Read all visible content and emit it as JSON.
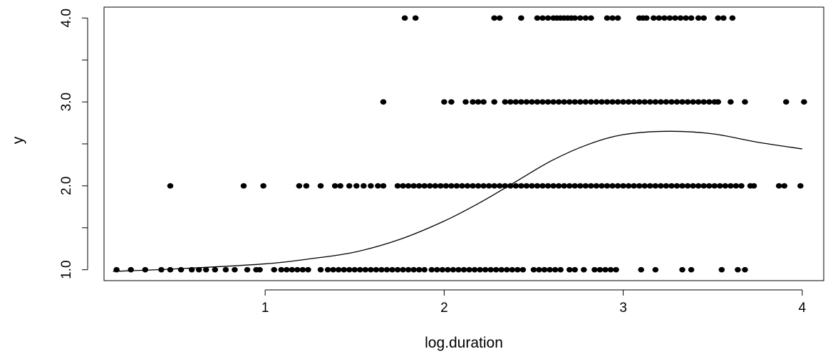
{
  "chart_data": {
    "type": "scatter",
    "xlabel": "log.duration",
    "ylabel": "y",
    "xlim": [
      0.1,
      4.12
    ],
    "ylim": [
      0.87,
      4.13
    ],
    "x_ticks": [
      1,
      2,
      3,
      4
    ],
    "x_tick_labels": [
      "1",
      "2",
      "3",
      "4"
    ],
    "y_ticks": [
      1.0,
      1.5,
      2.0,
      2.5,
      3.0,
      3.5,
      4.0
    ],
    "y_tick_labels": [
      "1.0",
      "",
      "2.0",
      "",
      "3.0",
      "",
      "4.0"
    ],
    "grid": false,
    "colors": {
      "points": "#000000",
      "line": "#000000"
    },
    "series": [
      {
        "kind": "points",
        "points": [
          [
            0.17,
            1
          ],
          [
            0.25,
            1
          ],
          [
            0.33,
            1
          ],
          [
            0.42,
            1
          ],
          [
            0.47,
            1
          ],
          [
            0.53,
            1
          ],
          [
            0.59,
            1
          ],
          [
            0.63,
            1
          ],
          [
            0.67,
            1
          ],
          [
            0.72,
            1
          ],
          [
            0.78,
            1
          ],
          [
            0.83,
            1
          ],
          [
            0.9,
            1
          ],
          [
            0.95,
            1
          ],
          [
            0.97,
            1
          ],
          [
            1.05,
            1
          ],
          [
            1.09,
            1
          ],
          [
            1.12,
            1
          ],
          [
            1.15,
            1
          ],
          [
            1.18,
            1
          ],
          [
            1.21,
            1
          ],
          [
            1.24,
            1
          ],
          [
            1.31,
            1
          ],
          [
            1.35,
            1
          ],
          [
            1.38,
            1
          ],
          [
            1.41,
            1
          ],
          [
            1.44,
            1
          ],
          [
            1.47,
            1
          ],
          [
            1.5,
            1
          ],
          [
            1.53,
            1
          ],
          [
            1.56,
            1
          ],
          [
            1.59,
            1
          ],
          [
            1.62,
            1
          ],
          [
            1.65,
            1
          ],
          [
            1.68,
            1
          ],
          [
            1.71,
            1
          ],
          [
            1.74,
            1
          ],
          [
            1.77,
            1
          ],
          [
            1.8,
            1
          ],
          [
            1.83,
            1
          ],
          [
            1.86,
            1
          ],
          [
            1.89,
            1
          ],
          [
            1.93,
            1
          ],
          [
            1.96,
            1
          ],
          [
            1.99,
            1
          ],
          [
            2.02,
            1
          ],
          [
            2.05,
            1
          ],
          [
            2.08,
            1
          ],
          [
            2.11,
            1
          ],
          [
            2.14,
            1
          ],
          [
            2.17,
            1
          ],
          [
            2.2,
            1
          ],
          [
            2.23,
            1
          ],
          [
            2.26,
            1
          ],
          [
            2.29,
            1
          ],
          [
            2.32,
            1
          ],
          [
            2.35,
            1
          ],
          [
            2.38,
            1
          ],
          [
            2.41,
            1
          ],
          [
            2.44,
            1
          ],
          [
            2.5,
            1
          ],
          [
            2.53,
            1
          ],
          [
            2.56,
            1
          ],
          [
            2.59,
            1
          ],
          [
            2.62,
            1
          ],
          [
            2.65,
            1
          ],
          [
            2.7,
            1
          ],
          [
            2.73,
            1
          ],
          [
            2.78,
            1
          ],
          [
            2.84,
            1
          ],
          [
            2.87,
            1
          ],
          [
            2.9,
            1
          ],
          [
            2.93,
            1
          ],
          [
            2.96,
            1
          ],
          [
            3.1,
            1
          ],
          [
            3.18,
            1
          ],
          [
            3.33,
            1
          ],
          [
            3.38,
            1
          ],
          [
            3.55,
            1
          ],
          [
            3.64,
            1
          ],
          [
            3.68,
            1
          ],
          [
            0.47,
            2
          ],
          [
            0.88,
            2
          ],
          [
            0.99,
            2
          ],
          [
            1.19,
            2
          ],
          [
            1.23,
            2
          ],
          [
            1.31,
            2
          ],
          [
            1.39,
            2
          ],
          [
            1.42,
            2
          ],
          [
            1.47,
            2
          ],
          [
            1.51,
            2
          ],
          [
            1.55,
            2
          ],
          [
            1.59,
            2
          ],
          [
            1.63,
            2
          ],
          [
            1.66,
            2
          ],
          [
            1.74,
            2
          ],
          [
            1.77,
            2
          ],
          [
            1.8,
            2
          ],
          [
            1.83,
            2
          ],
          [
            1.86,
            2
          ],
          [
            1.89,
            2
          ],
          [
            1.92,
            2
          ],
          [
            1.95,
            2
          ],
          [
            1.98,
            2
          ],
          [
            2.01,
            2
          ],
          [
            2.04,
            2
          ],
          [
            2.07,
            2
          ],
          [
            2.1,
            2
          ],
          [
            2.13,
            2
          ],
          [
            2.16,
            2
          ],
          [
            2.19,
            2
          ],
          [
            2.22,
            2
          ],
          [
            2.25,
            2
          ],
          [
            2.28,
            2
          ],
          [
            2.31,
            2
          ],
          [
            2.34,
            2
          ],
          [
            2.37,
            2
          ],
          [
            2.4,
            2
          ],
          [
            2.43,
            2
          ],
          [
            2.46,
            2
          ],
          [
            2.49,
            2
          ],
          [
            2.52,
            2
          ],
          [
            2.55,
            2
          ],
          [
            2.58,
            2
          ],
          [
            2.61,
            2
          ],
          [
            2.64,
            2
          ],
          [
            2.67,
            2
          ],
          [
            2.7,
            2
          ],
          [
            2.73,
            2
          ],
          [
            2.76,
            2
          ],
          [
            2.79,
            2
          ],
          [
            2.82,
            2
          ],
          [
            2.85,
            2
          ],
          [
            2.88,
            2
          ],
          [
            2.91,
            2
          ],
          [
            2.94,
            2
          ],
          [
            2.97,
            2
          ],
          [
            3.0,
            2
          ],
          [
            3.03,
            2
          ],
          [
            3.06,
            2
          ],
          [
            3.09,
            2
          ],
          [
            3.12,
            2
          ],
          [
            3.15,
            2
          ],
          [
            3.18,
            2
          ],
          [
            3.21,
            2
          ],
          [
            3.24,
            2
          ],
          [
            3.27,
            2
          ],
          [
            3.3,
            2
          ],
          [
            3.33,
            2
          ],
          [
            3.36,
            2
          ],
          [
            3.39,
            2
          ],
          [
            3.42,
            2
          ],
          [
            3.45,
            2
          ],
          [
            3.48,
            2
          ],
          [
            3.51,
            2
          ],
          [
            3.54,
            2
          ],
          [
            3.57,
            2
          ],
          [
            3.6,
            2
          ],
          [
            3.63,
            2
          ],
          [
            3.66,
            2
          ],
          [
            3.71,
            2
          ],
          [
            3.73,
            2
          ],
          [
            3.87,
            2
          ],
          [
            3.9,
            2
          ],
          [
            3.99,
            2
          ],
          [
            1.66,
            3
          ],
          [
            2.0,
            3
          ],
          [
            2.04,
            3
          ],
          [
            2.12,
            3
          ],
          [
            2.16,
            3
          ],
          [
            2.19,
            3
          ],
          [
            2.22,
            3
          ],
          [
            2.28,
            3
          ],
          [
            2.34,
            3
          ],
          [
            2.37,
            3
          ],
          [
            2.4,
            3
          ],
          [
            2.43,
            3
          ],
          [
            2.46,
            3
          ],
          [
            2.49,
            3
          ],
          [
            2.52,
            3
          ],
          [
            2.55,
            3
          ],
          [
            2.58,
            3
          ],
          [
            2.61,
            3
          ],
          [
            2.64,
            3
          ],
          [
            2.67,
            3
          ],
          [
            2.7,
            3
          ],
          [
            2.73,
            3
          ],
          [
            2.76,
            3
          ],
          [
            2.79,
            3
          ],
          [
            2.82,
            3
          ],
          [
            2.85,
            3
          ],
          [
            2.88,
            3
          ],
          [
            2.91,
            3
          ],
          [
            2.94,
            3
          ],
          [
            2.97,
            3
          ],
          [
            3.0,
            3
          ],
          [
            3.03,
            3
          ],
          [
            3.06,
            3
          ],
          [
            3.09,
            3
          ],
          [
            3.12,
            3
          ],
          [
            3.15,
            3
          ],
          [
            3.18,
            3
          ],
          [
            3.21,
            3
          ],
          [
            3.24,
            3
          ],
          [
            3.27,
            3
          ],
          [
            3.3,
            3
          ],
          [
            3.33,
            3
          ],
          [
            3.36,
            3
          ],
          [
            3.39,
            3
          ],
          [
            3.42,
            3
          ],
          [
            3.45,
            3
          ],
          [
            3.48,
            3
          ],
          [
            3.51,
            3
          ],
          [
            3.53,
            3
          ],
          [
            3.6,
            3
          ],
          [
            3.68,
            3
          ],
          [
            3.91,
            3
          ],
          [
            4.01,
            3
          ],
          [
            1.78,
            4
          ],
          [
            1.84,
            4
          ],
          [
            2.28,
            4
          ],
          [
            2.31,
            4
          ],
          [
            2.43,
            4
          ],
          [
            2.52,
            4
          ],
          [
            2.55,
            4
          ],
          [
            2.58,
            4
          ],
          [
            2.61,
            4
          ],
          [
            2.63,
            4
          ],
          [
            2.65,
            4
          ],
          [
            2.67,
            4
          ],
          [
            2.69,
            4
          ],
          [
            2.71,
            4
          ],
          [
            2.73,
            4
          ],
          [
            2.76,
            4
          ],
          [
            2.79,
            4
          ],
          [
            2.82,
            4
          ],
          [
            2.91,
            4
          ],
          [
            2.94,
            4
          ],
          [
            2.97,
            4
          ],
          [
            3.09,
            4
          ],
          [
            3.11,
            4
          ],
          [
            3.13,
            4
          ],
          [
            3.17,
            4
          ],
          [
            3.2,
            4
          ],
          [
            3.23,
            4
          ],
          [
            3.26,
            4
          ],
          [
            3.29,
            4
          ],
          [
            3.32,
            4
          ],
          [
            3.35,
            4
          ],
          [
            3.38,
            4
          ],
          [
            3.42,
            4
          ],
          [
            3.45,
            4
          ],
          [
            3.53,
            4
          ],
          [
            3.56,
            4
          ],
          [
            3.61,
            4
          ]
        ]
      },
      {
        "kind": "line",
        "x": [
          0.15,
          0.5,
          1.0,
          1.25,
          1.5,
          1.75,
          2.0,
          2.2,
          2.4,
          2.6,
          2.8,
          3.0,
          3.25,
          3.5,
          3.75,
          4.0
        ],
        "y": [
          0.98,
          1.01,
          1.07,
          1.13,
          1.21,
          1.36,
          1.58,
          1.8,
          2.05,
          2.3,
          2.49,
          2.61,
          2.65,
          2.62,
          2.52,
          2.44
        ]
      }
    ]
  }
}
